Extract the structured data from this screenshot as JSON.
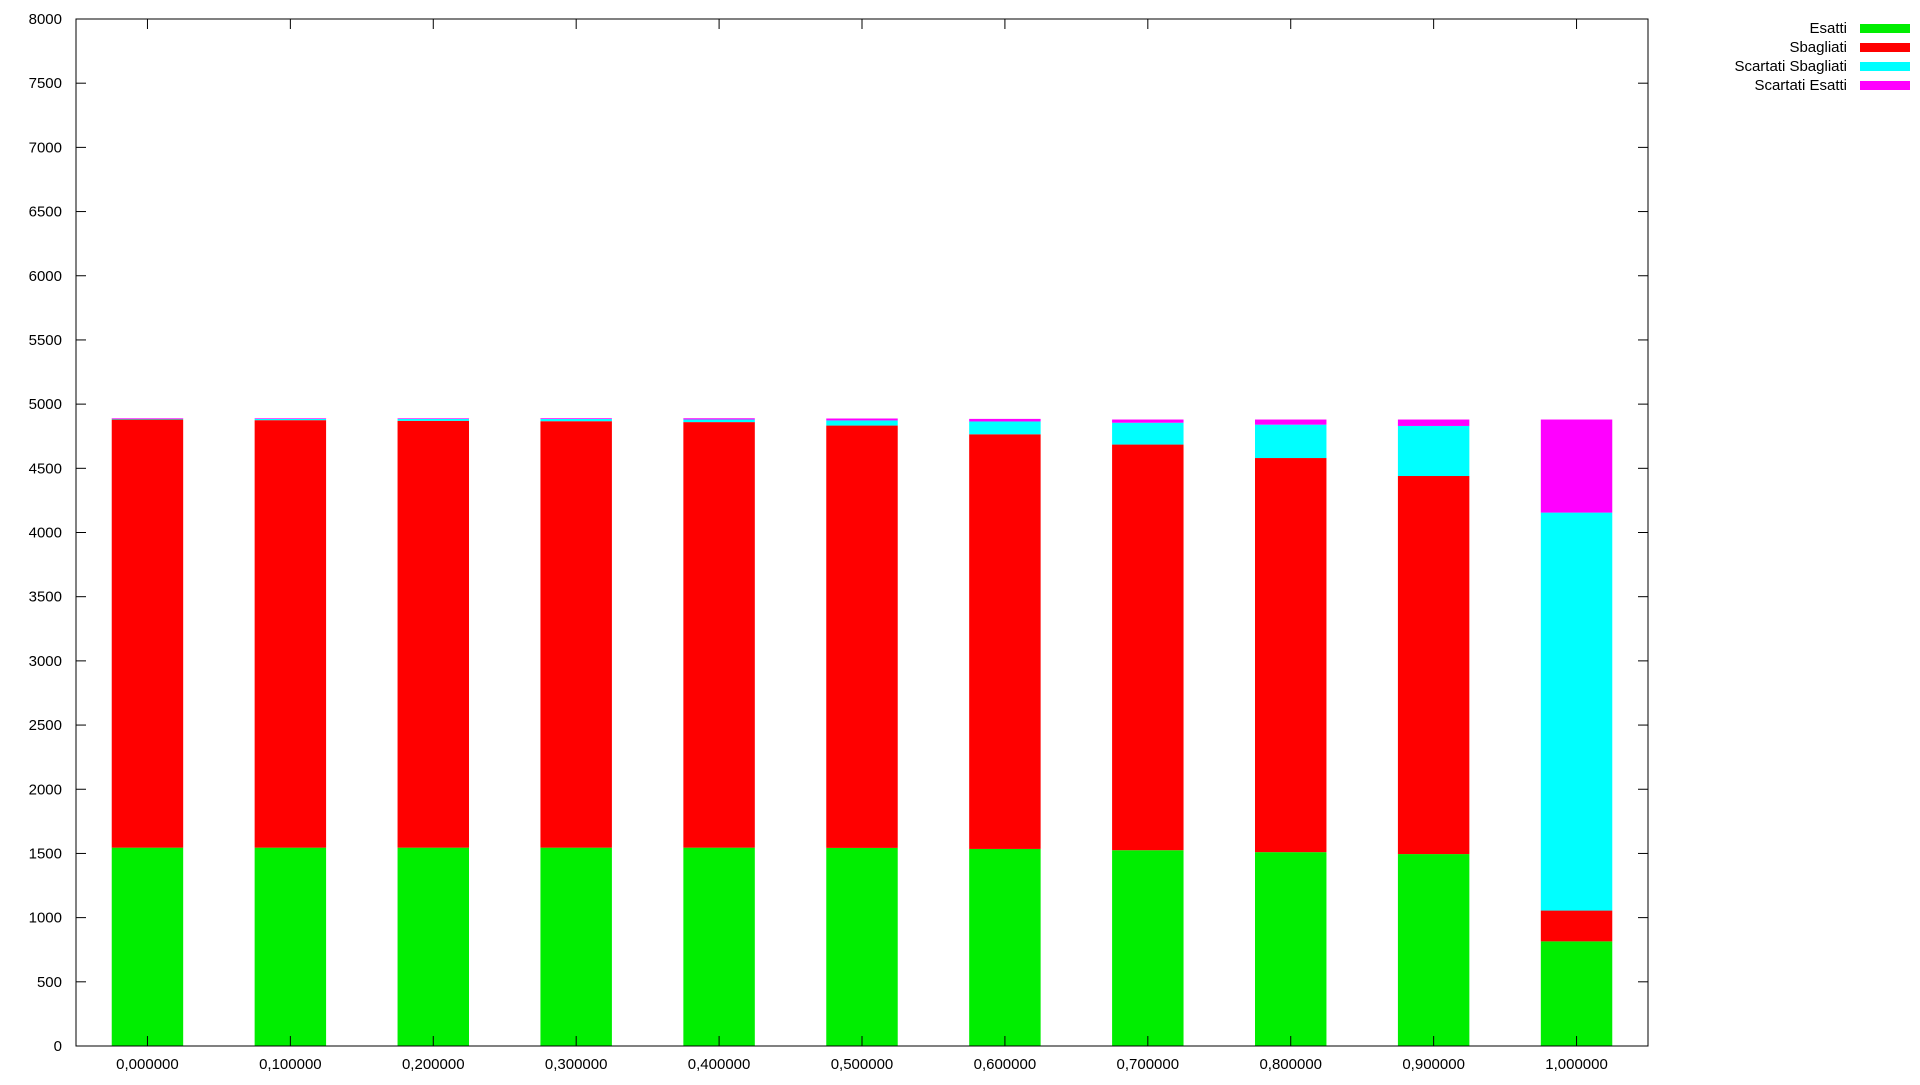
{
  "chart_data": {
    "type": "bar",
    "stacked": true,
    "categories": [
      "0,000000",
      "0,100000",
      "0,200000",
      "0,300000",
      "0,400000",
      "0,500000",
      "0,600000",
      "0,700000",
      "0,800000",
      "0,900000",
      "1,000000"
    ],
    "ylim": [
      0,
      8000
    ],
    "yticks": [
      "0",
      "500",
      "1000",
      "1500",
      "2000",
      "2500",
      "3000",
      "3500",
      "4000",
      "4500",
      "5000",
      "5500",
      "6000",
      "6500",
      "7000",
      "7500",
      "8000"
    ],
    "ytick_values": [
      0,
      500,
      1000,
      1500,
      2000,
      2500,
      3000,
      3500,
      4000,
      4500,
      5000,
      5500,
      6000,
      6500,
      7000,
      7500,
      8000
    ],
    "grid": false,
    "legend_position": "top-right, outside plot area",
    "series": [
      {
        "name": "Esatti",
        "color": "#00ee00",
        "values": [
          1545,
          1545,
          1545,
          1545,
          1545,
          1543,
          1535,
          1525,
          1510,
          1495,
          815
        ]
      },
      {
        "name": "Sbagliati",
        "color": "#ff0000",
        "values": [
          3335,
          3330,
          3325,
          3322,
          3315,
          3290,
          3230,
          3160,
          3070,
          2945,
          240
        ]
      },
      {
        "name": "Scartati Sbagliati",
        "color": "#00ffff",
        "values": [
          5,
          10,
          15,
          17,
          20,
          40,
          100,
          170,
          260,
          390,
          3100
        ]
      },
      {
        "name": "Scartati Esatti",
        "color": "#ff00ff",
        "values": [
          5,
          5,
          5,
          6,
          10,
          15,
          20,
          25,
          40,
          50,
          725
        ]
      }
    ]
  }
}
